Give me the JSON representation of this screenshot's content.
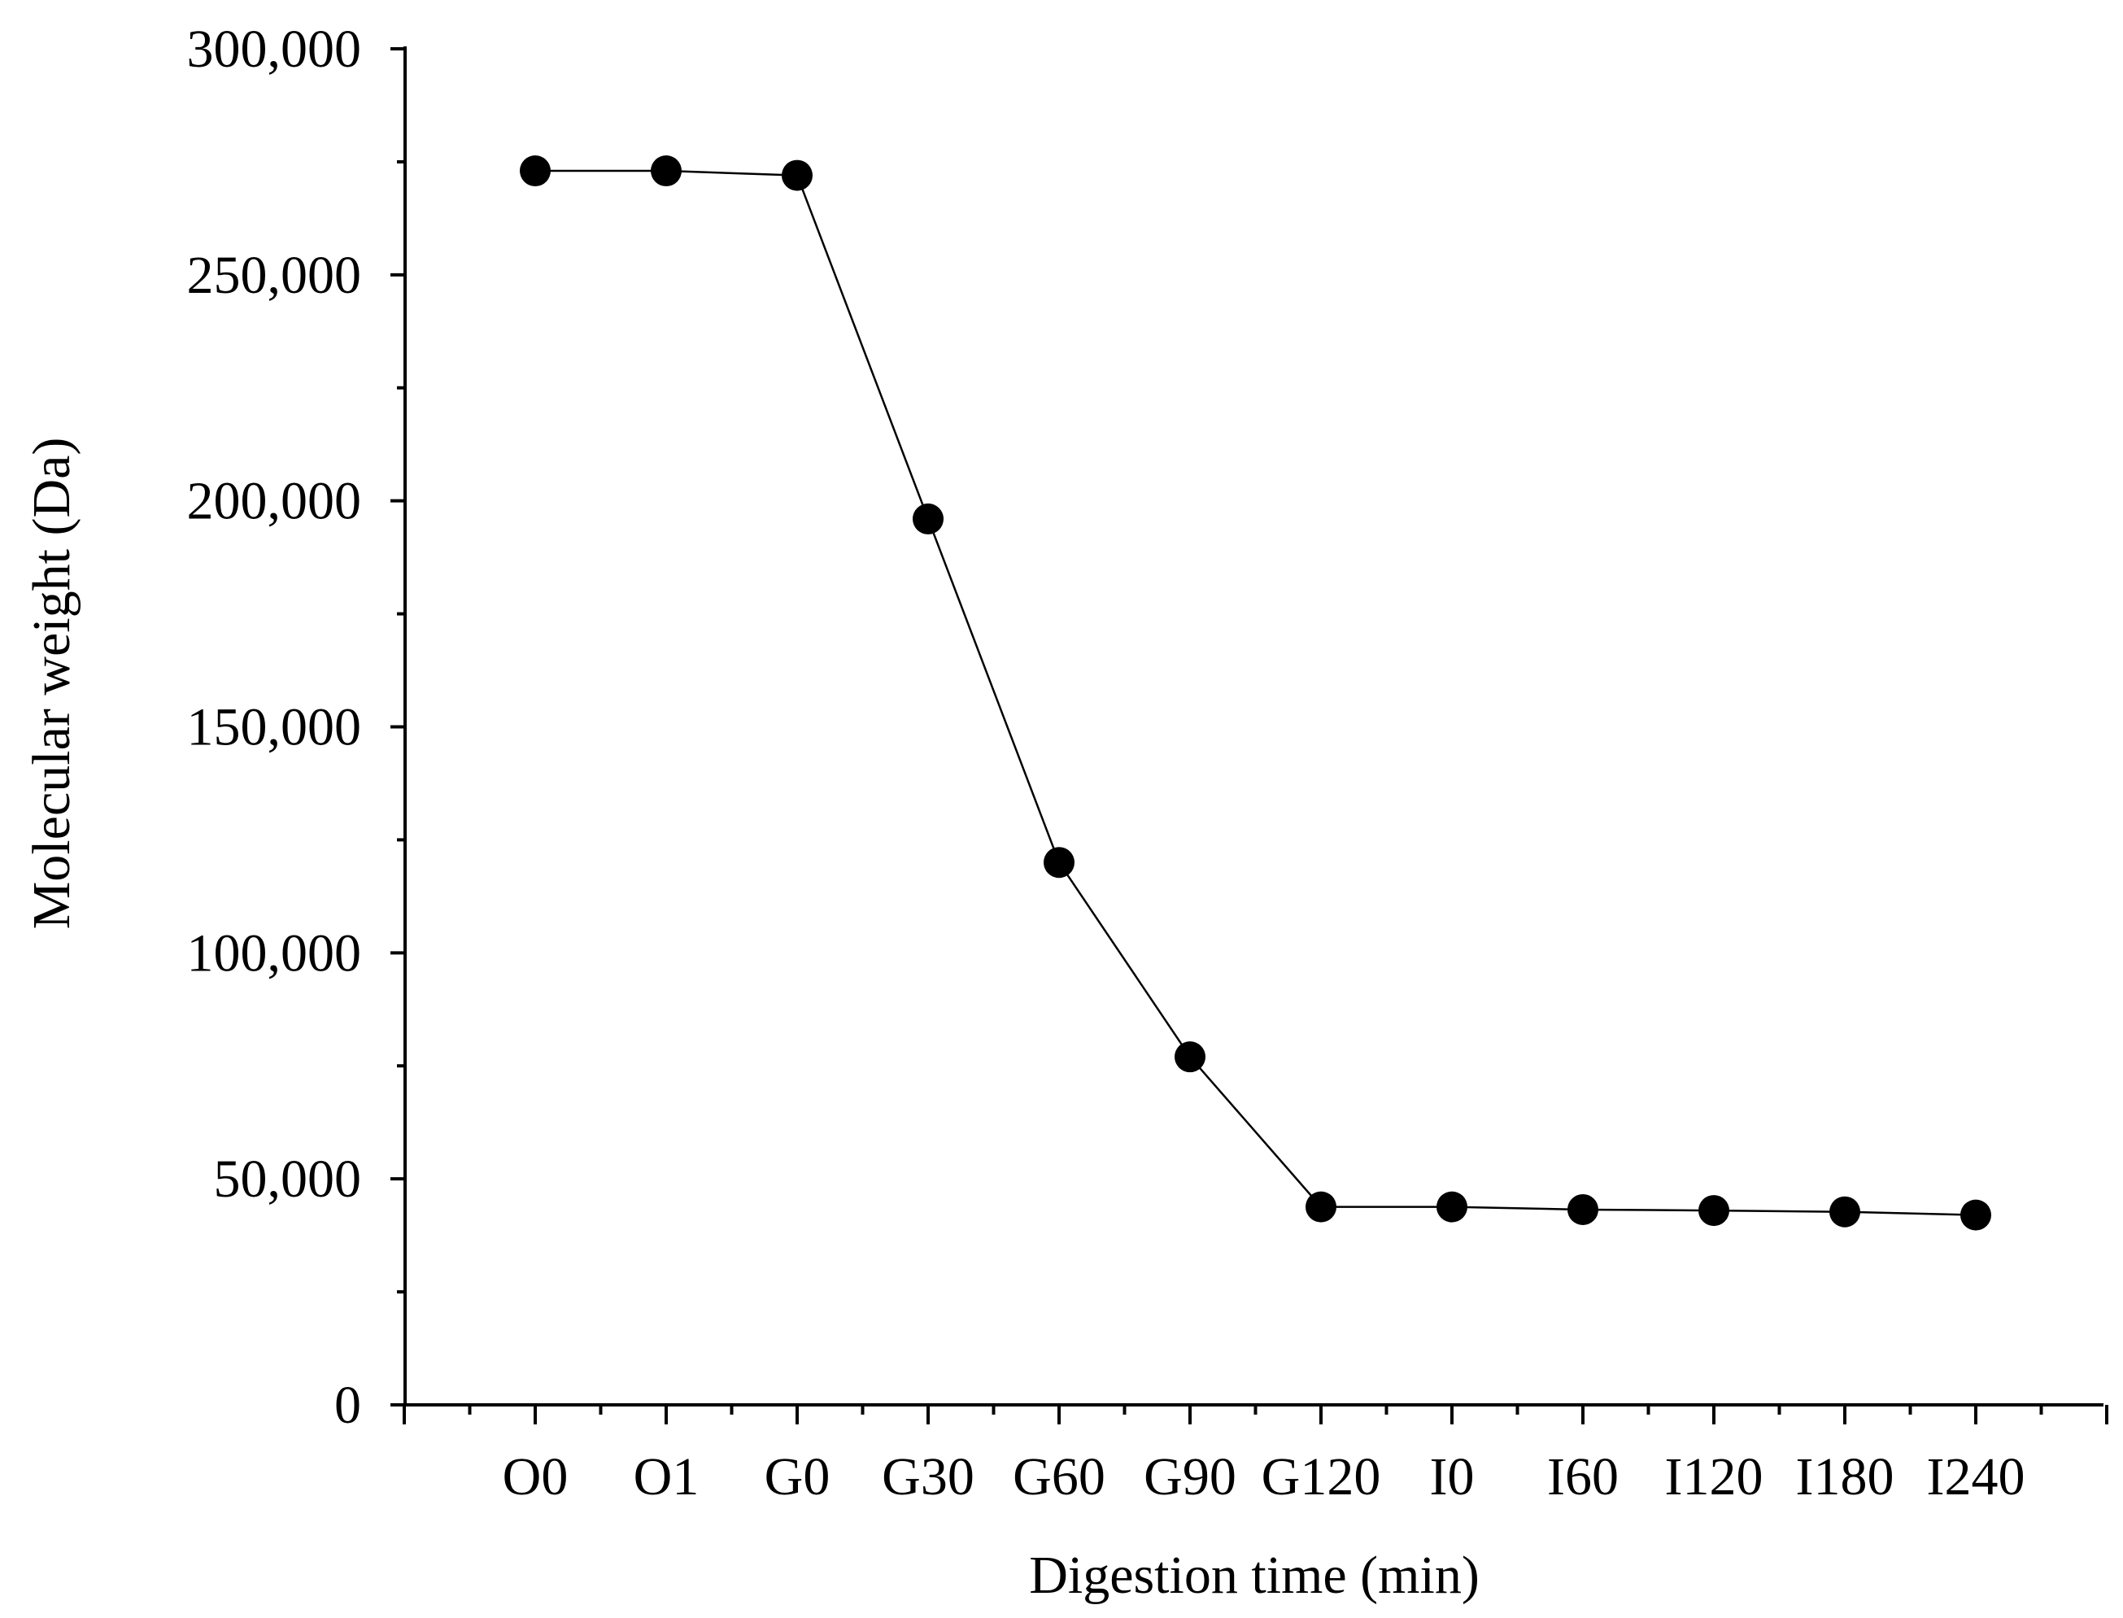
{
  "chart_data": {
    "type": "line",
    "title": "",
    "xlabel": "Digestion time (min)",
    "ylabel": "Molecular weight (Da)",
    "categories": [
      "O0",
      "O1",
      "G0",
      "G30",
      "G60",
      "G90",
      "G120",
      "I0",
      "I60",
      "I120",
      "I180",
      "I240"
    ],
    "series": [
      {
        "values": [
          273000,
          273000,
          272000,
          196000,
          120000,
          77000,
          43800,
          43800,
          43200,
          43000,
          42700,
          42000
        ]
      }
    ],
    "ylim": [
      0,
      300000
    ],
    "y_ticks": [
      0,
      50000,
      100000,
      150000,
      200000,
      250000,
      300000
    ],
    "y_tick_labels": [
      "0",
      "50,000",
      "100,000",
      "150,000",
      "200,000",
      "250,000",
      "300,000"
    ],
    "grid": false,
    "legend": "none",
    "colors": {
      "line": "#000000",
      "marker": "#000000",
      "axis": "#000000",
      "background": "#ffffff"
    }
  }
}
